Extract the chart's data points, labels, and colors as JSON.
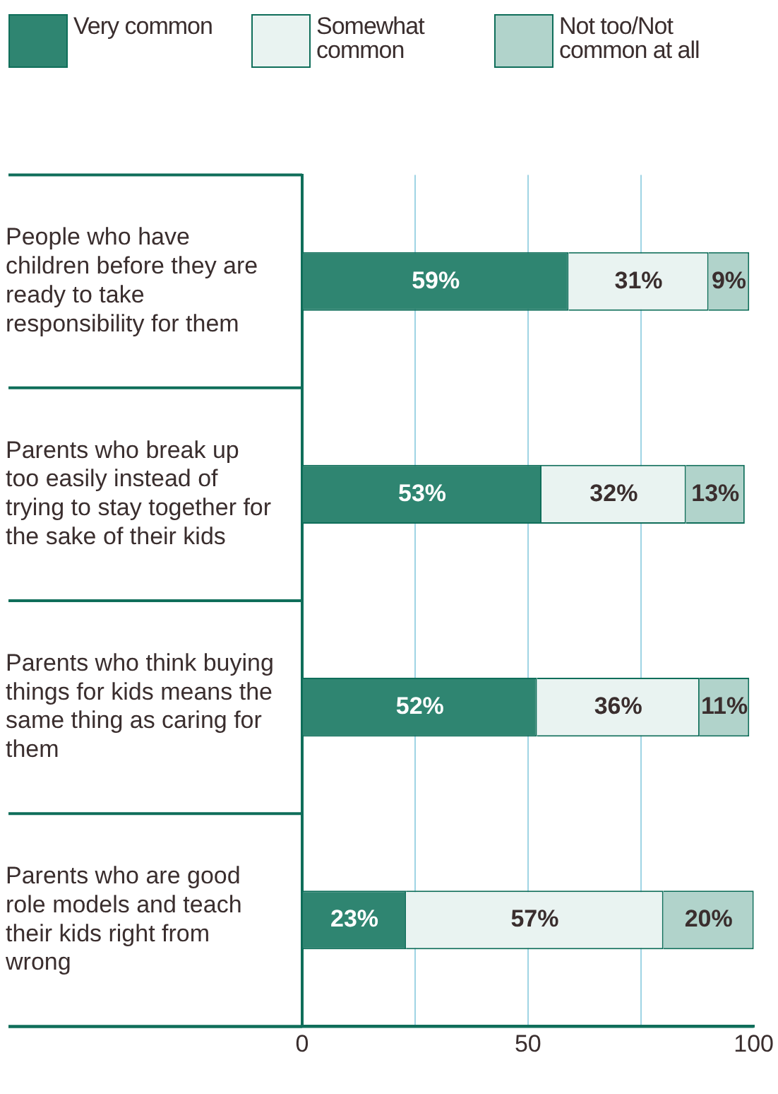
{
  "chart_data": {
    "type": "bar",
    "orientation": "horizontal",
    "stacked": true,
    "categories": [
      "People who have children before they are ready to take responsibility for them",
      "Parents who break up too easily instead of trying to stay together for the sake of their kids",
      "Parents who think buying things for kids means the same thing as caring for them",
      "Parents who are good role models and teach their kids right from wrong"
    ],
    "series": [
      {
        "name": "Very common",
        "color": "#2f8571",
        "values": [
          59,
          53,
          52,
          23
        ],
        "value_labels": [
          "59%",
          "53%",
          "52%",
          "23%"
        ]
      },
      {
        "name": "Somewhat common",
        "color": "#e9f3f1",
        "values": [
          31,
          32,
          36,
          57
        ],
        "value_labels": [
          "31%",
          "32%",
          "36%",
          "57%"
        ]
      },
      {
        "name": "Not too/Not common at all",
        "color": "#b1d3cb",
        "values": [
          9,
          13,
          11,
          20
        ],
        "value_labels": [
          "9%",
          "13%",
          "11%",
          "20%"
        ]
      }
    ],
    "xlim": [
      0,
      100
    ],
    "xticks": [
      0,
      {
        "value": 25,
        "label": null
      },
      50,
      {
        "value": 75,
        "label": null
      },
      100
    ],
    "grid": "x",
    "legend": "top"
  }
}
